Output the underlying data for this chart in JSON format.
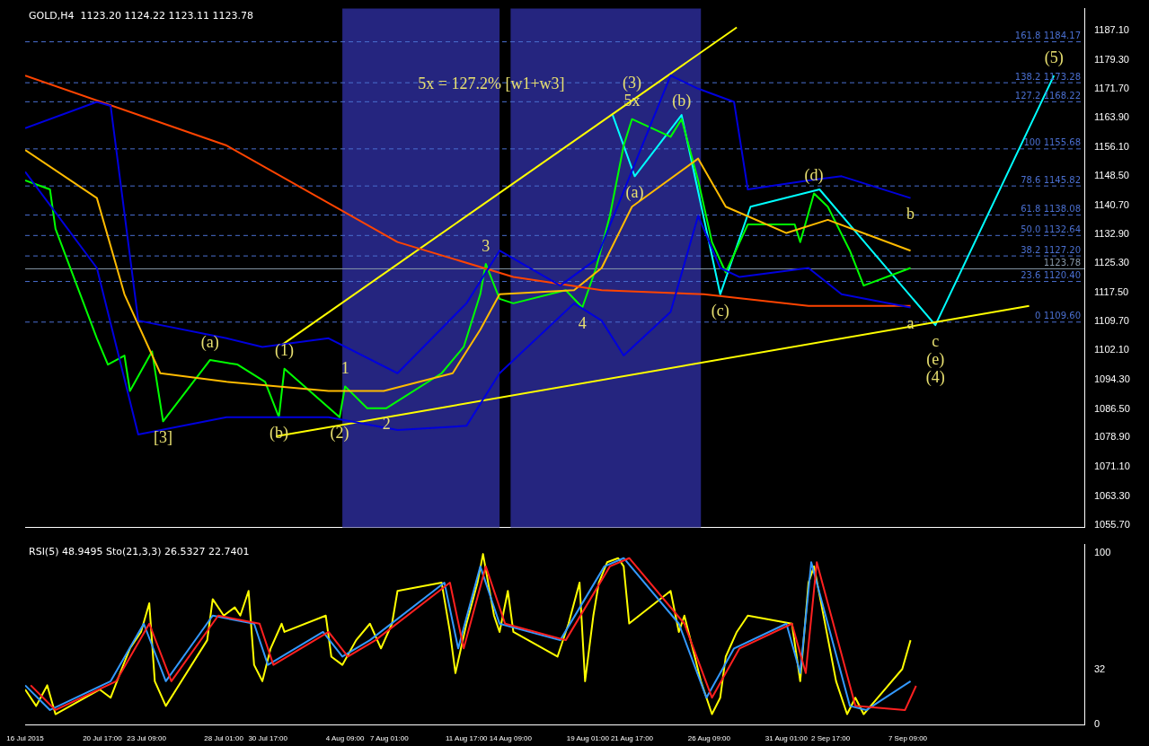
{
  "chart_data": [
    {
      "type": "line",
      "title": "GOLD,H4  1123.20 1124.22 1123.11 1123.78",
      "xlim": [
        "2015-07-16T01:00",
        "2015-09-18T01:00"
      ],
      "ylim": [
        1055,
        1193
      ],
      "yticks": [
        {
          "value": 1055.7,
          "label": "1055.70"
        },
        {
          "value": 1063.3,
          "label": "1063.30"
        },
        {
          "value": 1071.1,
          "label": "1071.10"
        },
        {
          "value": 1078.9,
          "label": "1078.90"
        },
        {
          "value": 1086.5,
          "label": "1086.50"
        },
        {
          "value": 1094.3,
          "label": "1094.30"
        },
        {
          "value": 1102.1,
          "label": "1102.10"
        },
        {
          "value": 1109.7,
          "label": "1109.70"
        },
        {
          "value": 1117.5,
          "label": "1117.50"
        },
        {
          "value": 1125.3,
          "label": "1125.30"
        },
        {
          "value": 1132.9,
          "label": "1132.90"
        },
        {
          "value": 1140.7,
          "label": "1140.70"
        },
        {
          "value": 1148.5,
          "label": "1148.50"
        },
        {
          "value": 1156.1,
          "label": "1156.10"
        },
        {
          "value": 1163.9,
          "label": "1163.90"
        },
        {
          "value": 1171.7,
          "label": "1171.70"
        },
        {
          "value": 1179.3,
          "label": "1179.30"
        },
        {
          "value": 1187.1,
          "label": "1187.10"
        }
      ],
      "tick_labels": "y",
      "grid": false,
      "legend": false,
      "marker": "none",
      "line_style": "solid",
      "bands": [
        {
          "axis": "x",
          "from": "2015-08-04T05:00",
          "to": "2015-08-13T17:00",
          "color": "#25257f"
        },
        {
          "axis": "x",
          "from": "2015-08-14T09:00",
          "to": "2015-08-25T21:00",
          "color": "#25257f"
        }
      ],
      "series": [
        {
          "color": "#0000dd",
          "x": [
            "2015-07-16T01:00",
            "2015-07-20T09:00",
            "2015-07-21T05:00",
            "2015-07-22T21:00",
            "2015-07-28T05:00",
            "2015-07-30T09:00",
            "2015-08-03T09:00",
            "2015-08-07T13:00",
            "2015-08-11T17:00",
            "2015-08-13T17:00",
            "2015-08-17T09:00",
            "2015-08-19T13:00",
            "2015-08-24T01:00",
            "2015-08-25T17:00",
            "2015-08-27T21:00",
            "2015-08-28T17:00",
            "2015-09-01T09:00",
            "2015-09-03T09:00",
            "2015-09-07T13:00"
          ],
          "values": [
            1161.2,
            1168.2,
            1167.1,
            1110.0,
            1105.3,
            1103.0,
            1105.3,
            1096.0,
            1114.6,
            1128.6,
            1119.3,
            1126.3,
            1175.2,
            1171.7,
            1168.2,
            1144.9,
            1147.3,
            1148.4,
            1142.6
          ]
        },
        {
          "color": "#0000dd",
          "x": [
            "2015-07-16T01:00",
            "2015-07-20T09:00",
            "2015-07-22T21:00",
            "2015-07-28T05:00",
            "2015-08-03T09:00",
            "2015-08-07T13:00",
            "2015-08-11T17:00",
            "2015-08-13T17:00",
            "2015-08-18T05:00",
            "2015-08-19T21:00",
            "2015-08-21T05:00",
            "2015-08-24T01:00",
            "2015-08-25T17:00",
            "2015-08-27T01:00",
            "2015-08-28T05:00",
            "2015-09-01T09:00",
            "2015-09-03T09:00",
            "2015-09-07T13:00"
          ],
          "values": [
            1149.6,
            1124.0,
            1079.7,
            1084.3,
            1084.3,
            1080.9,
            1082.0,
            1096.0,
            1114.6,
            1110.0,
            1100.7,
            1112.3,
            1137.9,
            1124.0,
            1121.6,
            1124.0,
            1117.0,
            1113.5
          ]
        },
        {
          "color": "#ff4400",
          "x": [
            "2015-07-16T01:00",
            "2015-07-28T05:00",
            "2015-08-07T13:00",
            "2015-08-14T13:00",
            "2015-08-19T21:00",
            "2015-08-26T01:00",
            "2015-09-01T09:00",
            "2015-09-07T13:00"
          ],
          "values": [
            1175.2,
            1156.6,
            1130.9,
            1121.6,
            1118.1,
            1117.0,
            1113.9,
            1113.9
          ]
        },
        {
          "color": "#ffbb00",
          "x": [
            "2015-07-16T01:00",
            "2015-07-20T09:00",
            "2015-07-22T01:00",
            "2015-07-24T05:00",
            "2015-07-28T05:00",
            "2015-08-03T09:00",
            "2015-08-06T17:00",
            "2015-08-10T21:00",
            "2015-08-12T13:00",
            "2015-08-13T17:00",
            "2015-08-18T05:00",
            "2015-08-19T21:00",
            "2015-08-21T17:00",
            "2015-08-25T17:00",
            "2015-08-27T09:00",
            "2015-08-31T01:00",
            "2015-09-02T13:00",
            "2015-09-07T13:00"
          ],
          "values": [
            1155.4,
            1142.6,
            1117.0,
            1096.0,
            1093.7,
            1091.3,
            1091.3,
            1096.0,
            1107.6,
            1117.0,
            1118.1,
            1124.0,
            1140.3,
            1153.1,
            1140.3,
            1133.3,
            1136.8,
            1128.6
          ]
        },
        {
          "color": "#00ff00",
          "x": [
            "2015-07-16T01:00",
            "2015-07-17T13:00",
            "2015-07-17T21:00",
            "2015-07-20T09:00",
            "2015-07-21T01:00",
            "2015-07-22T01:00",
            "2015-07-22T09:00",
            "2015-07-23T17:00",
            "2015-07-24T09:00",
            "2015-07-27T05:00",
            "2015-07-28T21:00",
            "2015-07-30T13:00",
            "2015-07-31T09:00",
            "2015-07-31T17:00",
            "2015-08-04T01:00",
            "2015-08-04T09:00",
            "2015-08-05T17:00",
            "2015-08-06T21:00",
            "2015-08-10T05:00",
            "2015-08-11T13:00",
            "2015-08-12T13:00",
            "2015-08-12T21:00",
            "2015-08-13T17:00",
            "2015-08-14T13:00",
            "2015-08-17T17:00",
            "2015-08-18T17:00",
            "2015-08-19T13:00",
            "2015-08-20T09:00",
            "2015-08-21T05:00",
            "2015-08-21T17:00",
            "2015-08-24T01:00",
            "2015-08-24T17:00",
            "2015-08-25T17:00",
            "2015-08-26T13:00",
            "2015-08-27T09:00",
            "2015-08-28T17:00",
            "2015-08-31T13:00",
            "2015-08-31T21:00",
            "2015-09-01T17:00",
            "2015-09-02T13:00",
            "2015-09-03T21:00",
            "2015-09-04T17:00",
            "2015-09-07T13:00"
          ],
          "values": [
            1147.3,
            1144.9,
            1134.4,
            1105.3,
            1098.3,
            1100.7,
            1091.3,
            1101.8,
            1083.2,
            1099.5,
            1098.3,
            1093.7,
            1084.3,
            1097.2,
            1084.3,
            1092.5,
            1086.7,
            1086.7,
            1096.0,
            1103.0,
            1117.0,
            1125.1,
            1115.8,
            1114.6,
            1118.1,
            1113.5,
            1124.0,
            1137.9,
            1156.6,
            1163.6,
            1158.9,
            1163.6,
            1147.3,
            1130.9,
            1122.8,
            1135.6,
            1135.6,
            1130.9,
            1143.8,
            1140.3,
            1128.6,
            1119.3,
            1124.0
          ]
        },
        {
          "color": "#ffff00",
          "x": [
            "2015-07-31T13:00",
            "2015-08-28T01:00"
          ],
          "values": [
            1103.5,
            1188.0
          ]
        },
        {
          "color": "#ffff00",
          "x": [
            "2015-07-31T05:00",
            "2015-09-14T17:00"
          ],
          "values": [
            1079.2,
            1113.9
          ]
        },
        {
          "color": "#00ffff",
          "x": [
            "2015-08-20T13:00",
            "2015-08-21T21:00",
            "2015-08-24T17:00",
            "2015-08-27T01:00",
            "2015-08-28T21:00",
            "2015-09-02T01:00",
            "2015-09-09T01:00",
            "2015-09-16T05:00"
          ],
          "values": [
            1164.7,
            1148.4,
            1164.7,
            1117.0,
            1140.3,
            1144.9,
            1108.8,
            1175.2
          ]
        }
      ],
      "ref_lines": [
        {
          "axis": "y",
          "value": 1123.78,
          "label": "1123.78",
          "color": "#8899aa",
          "line_style": "solid"
        },
        {
          "axis": "y",
          "value": 1109.6,
          "label": "0 1109.60",
          "color": "#4a6fd0",
          "line_style": "dashed"
        },
        {
          "axis": "y",
          "value": 1120.4,
          "label": "23.6 1120.40",
          "color": "#4a6fd0",
          "line_style": "dashed"
        },
        {
          "axis": "y",
          "value": 1127.2,
          "label": "38.2 1127.20",
          "color": "#4a6fd0",
          "line_style": "dashed"
        },
        {
          "axis": "y",
          "value": 1132.64,
          "label": "50.0 1132.64",
          "color": "#4a6fd0",
          "line_style": "dashed"
        },
        {
          "axis": "y",
          "value": 1138.08,
          "label": "61.8 1138.08",
          "color": "#4a6fd0",
          "line_style": "dashed"
        },
        {
          "axis": "y",
          "value": 1145.82,
          "label": "78.6 1145.82",
          "color": "#4a6fd0",
          "line_style": "dashed"
        },
        {
          "axis": "y",
          "value": 1155.68,
          "label": "100 1155.68",
          "color": "#4a6fd0",
          "line_style": "dashed"
        },
        {
          "axis": "y",
          "value": 1168.22,
          "label": "127.2 1168.22",
          "color": "#4a6fd0",
          "line_style": "dashed"
        },
        {
          "axis": "y",
          "value": 1173.28,
          "label": "138.2 1173.28",
          "color": "#4a6fd0",
          "line_style": "dashed"
        },
        {
          "axis": "y",
          "value": 1184.17,
          "label": "161.8 1184.17",
          "color": "#4a6fd0",
          "line_style": "dashed"
        }
      ],
      "annotations": [
        {
          "text": "(a)",
          "x": "2015-07-27T05:00",
          "y": 1099.5
        },
        {
          "text": "(1)",
          "x": "2015-07-31T17:00",
          "y": 1097.2
        },
        {
          "text": "(2)",
          "x": "2015-08-04T01:00",
          "y": 1084.3
        },
        {
          "text": "(b)",
          "x": "2015-07-31T09:00",
          "y": 1084.3
        },
        {
          "text": "[3]",
          "x": "2015-07-24T09:00",
          "y": 1083.2
        },
        {
          "text": "1",
          "x": "2015-08-04T09:00",
          "y": 1092.5
        },
        {
          "text": "2",
          "x": "2015-08-06T21:00",
          "y": 1086.7
        },
        {
          "text": "3",
          "x": "2015-08-12T21:00",
          "y": 1125.1
        },
        {
          "text": "4",
          "x": "2015-08-18T17:00",
          "y": 1113.5
        },
        {
          "text": "5x",
          "x": "2015-08-21T17:00",
          "y": 1163.6
        },
        {
          "text": "5x = 127.2% [w1+w3]",
          "x": "2015-08-13T05:00",
          "y": 1168.22
        },
        {
          "text": "(3)",
          "x": "2015-08-21T17:00",
          "y": 1163.6
        },
        {
          "text": "(b)",
          "x": "2015-08-24T17:00",
          "y": 1163.6
        },
        {
          "text": "(a)",
          "x": "2015-08-21T21:00",
          "y": 1148.4
        },
        {
          "text": "(c)",
          "x": "2015-08-27T01:00",
          "y": 1117.0
        },
        {
          "text": "(d)",
          "x": "2015-09-01T17:00",
          "y": 1143.8
        },
        {
          "text": "b",
          "x": "2015-09-07T13:00",
          "y": 1142.6
        },
        {
          "text": "a",
          "x": "2015-09-07T13:00",
          "y": 1113.5
        },
        {
          "text": "c",
          "x": "2015-09-09T01:00",
          "y": 1108.8
        },
        {
          "text": "(e)",
          "x": "2015-09-09T01:00",
          "y": 1108.8
        },
        {
          "text": "(4)",
          "x": "2015-09-09T01:00",
          "y": 1108.8
        },
        {
          "text": "(5)",
          "x": "2015-09-16T05:00",
          "y": 1175.2
        }
      ]
    },
    {
      "type": "line",
      "title": "RSI(5) 48.9495 Sto(21,3,3) 26.5327 22.7401",
      "xlim": [
        "2015-07-16T01:00",
        "2015-09-18T01:00"
      ],
      "ylim": [
        0,
        105
      ],
      "yticks": [
        0,
        32,
        100
      ],
      "xticks": [
        {
          "value": "2015-07-16T01:00",
          "label": "16 Jul 2015"
        },
        {
          "value": "2015-07-20T17:00",
          "label": "20 Jul 17:00"
        },
        {
          "value": "2015-07-23T09:00",
          "label": "23 Jul 09:00"
        },
        {
          "value": "2015-07-28T01:00",
          "label": "28 Jul 01:00"
        },
        {
          "value": "2015-07-30T17:00",
          "label": "30 Jul 17:00"
        },
        {
          "value": "2015-08-04T09:00",
          "label": "4 Aug 09:00"
        },
        {
          "value": "2015-08-07T01:00",
          "label": "7 Aug 01:00"
        },
        {
          "value": "2015-08-11T17:00",
          "label": "11 Aug 17:00"
        },
        {
          "value": "2015-08-14T09:00",
          "label": "14 Aug 09:00"
        },
        {
          "value": "2015-08-19T01:00",
          "label": "19 Aug 01:00"
        },
        {
          "value": "2015-08-21T17:00",
          "label": "21 Aug 17:00"
        },
        {
          "value": "2015-08-26T09:00",
          "label": "26 Aug 09:00"
        },
        {
          "value": "2015-08-31T01:00",
          "label": "31 Aug 01:00"
        },
        {
          "value": "2015-09-02T17:00",
          "label": "2 Sep 17:00"
        },
        {
          "value": "2015-09-07T09:00",
          "label": "7 Sep 09:00"
        }
      ],
      "grid": false,
      "legend": false,
      "marker": "none",
      "line_style": "solid",
      "series": [
        {
          "color": "#ff2020",
          "x": [
            "2015-07-16T09:00",
            "2015-07-17T21:00",
            "2015-07-21T13:00",
            "2015-07-23T13:00",
            "2015-07-24T21:00",
            "2015-07-27T17:00",
            "2015-07-30T05:00",
            "2015-07-31T01:00",
            "2015-08-03T09:00",
            "2015-08-04T13:00",
            "2015-08-06T05:00",
            "2015-08-10T17:00",
            "2015-08-11T13:00",
            "2015-08-12T21:00",
            "2015-08-14T01:00",
            "2015-08-17T17:00",
            "2015-08-20T09:00",
            "2015-08-21T13:00",
            "2015-08-24T21:00",
            "2015-08-26T13:00",
            "2015-08-28T05:00",
            "2015-08-31T09:00",
            "2015-09-01T05:00",
            "2015-09-01T21:00",
            "2015-09-02T21:00",
            "2015-09-04T05:00",
            "2015-09-07T05:00",
            "2015-09-07T21:00"
          ],
          "values": [
            23.0,
            8.6,
            25.4,
            58.9,
            25.4,
            63.6,
            58.9,
            34.9,
            54.1,
            39.7,
            49.3,
            82.8,
            44.5,
            92.3,
            58.9,
            49.3,
            92.3,
            97.1,
            58.9,
            15.8,
            44.5,
            58.9,
            30.1,
            94.7,
            58.9,
            11.0,
            8.6,
            22.7
          ]
        },
        {
          "color": "#3399ff",
          "x": [
            "2015-07-16T01:00",
            "2015-07-17T13:00",
            "2015-07-21T05:00",
            "2015-07-23T05:00",
            "2015-07-24T13:00",
            "2015-07-27T09:00",
            "2015-07-29T21:00",
            "2015-07-30T17:00",
            "2015-08-03T01:00",
            "2015-08-04T05:00",
            "2015-08-05T21:00",
            "2015-08-10T09:00",
            "2015-08-11T05:00",
            "2015-08-12T13:00",
            "2015-08-13T17:00",
            "2015-08-17T09:00",
            "2015-08-20T01:00",
            "2015-08-21T05:00",
            "2015-08-24T13:00",
            "2015-08-26T05:00",
            "2015-08-27T21:00",
            "2015-08-31T01:00",
            "2015-08-31T21:00",
            "2015-09-01T13:00",
            "2015-09-02T13:00",
            "2015-09-03T21:00",
            "2015-09-04T21:00",
            "2015-09-07T13:00"
          ],
          "values": [
            23.0,
            8.6,
            25.4,
            58.9,
            25.4,
            63.6,
            58.9,
            34.9,
            54.1,
            39.7,
            49.3,
            82.8,
            44.5,
            92.3,
            58.9,
            49.3,
            92.3,
            97.1,
            58.9,
            15.8,
            44.5,
            58.9,
            30.1,
            94.7,
            58.9,
            11.0,
            8.6,
            25.4
          ]
        },
        {
          "color": "#ffff00",
          "x": [
            "2015-07-16T01:00",
            "2015-07-16T17:00",
            "2015-07-17T09:00",
            "2015-07-17T21:00",
            "2015-07-20T13:00",
            "2015-07-21T05:00",
            "2015-07-21T21:00",
            "2015-07-22T09:00",
            "2015-07-23T01:00",
            "2015-07-23T13:00",
            "2015-07-23T21:00",
            "2015-07-24T13:00",
            "2015-07-27T01:00",
            "2015-07-27T09:00",
            "2015-07-28T01:00",
            "2015-07-28T17:00",
            "2015-07-29T01:00",
            "2015-07-29T13:00",
            "2015-07-29T21:00",
            "2015-07-30T09:00",
            "2015-07-30T21:00",
            "2015-07-31T13:00",
            "2015-07-31T17:00",
            "2015-08-03T05:00",
            "2015-08-03T13:00",
            "2015-08-04T05:00",
            "2015-08-05T01:00",
            "2015-08-05T21:00",
            "2015-08-06T13:00",
            "2015-08-07T05:00",
            "2015-08-07T13:00",
            "2015-08-10T05:00",
            "2015-08-10T17:00",
            "2015-08-11T01:00",
            "2015-08-11T17:00",
            "2015-08-12T09:00",
            "2015-08-12T17:00",
            "2015-08-13T09:00",
            "2015-08-13T17:00",
            "2015-08-14T05:00",
            "2015-08-14T13:00",
            "2015-08-17T05:00",
            "2015-08-17T21:00",
            "2015-08-18T13:00",
            "2015-08-18T21:00",
            "2015-08-19T09:00",
            "2015-08-19T17:00",
            "2015-08-20T05:00",
            "2015-08-20T21:00",
            "2015-08-21T05:00",
            "2015-08-21T13:00",
            "2015-08-24T01:00",
            "2015-08-24T13:00",
            "2015-08-24T21:00",
            "2015-08-25T09:00",
            "2015-08-25T21:00",
            "2015-08-26T13:00",
            "2015-08-27T01:00",
            "2015-08-27T09:00",
            "2015-08-28T01:00",
            "2015-08-28T17:00",
            "2015-08-31T09:00",
            "2015-08-31T21:00",
            "2015-09-01T09:00",
            "2015-09-01T17:00",
            "2015-09-02T09:00",
            "2015-09-03T01:00",
            "2015-09-03T17:00",
            "2015-09-04T05:00",
            "2015-09-04T17:00",
            "2015-09-07T01:00",
            "2015-09-07T13:00"
          ],
          "values": [
            20.6,
            11.0,
            23.0,
            6.2,
            20.6,
            15.8,
            32.5,
            44.5,
            54.1,
            70.8,
            25.4,
            11.0,
            49.3,
            73.2,
            63.6,
            68.4,
            63.6,
            78.0,
            34.9,
            25.4,
            44.5,
            58.9,
            54.1,
            63.6,
            39.7,
            34.9,
            49.3,
            58.9,
            44.5,
            58.9,
            78.0,
            82.8,
            54.1,
            30.1,
            58.9,
            82.8,
            99.5,
            63.6,
            54.1,
            78.0,
            54.1,
            39.7,
            58.9,
            82.8,
            25.4,
            63.6,
            82.8,
            94.7,
            97.1,
            92.3,
            59.0,
            78.0,
            54.1,
            63.6,
            44.5,
            25.4,
            6.2,
            15.8,
            39.7,
            54.1,
            63.6,
            58.9,
            25.4,
            82.8,
            92.3,
            59.0,
            25.4,
            6.2,
            15.8,
            6.2,
            32.5,
            49.3
          ]
        }
      ]
    }
  ]
}
